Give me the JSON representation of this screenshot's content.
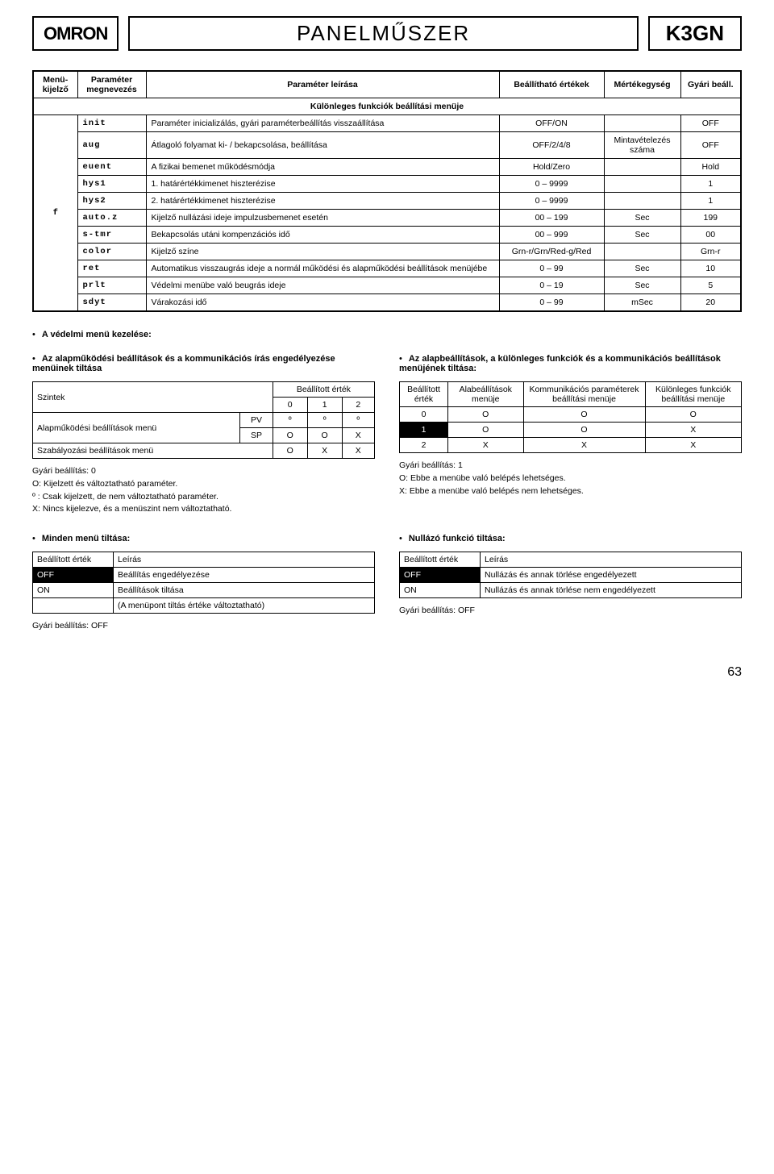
{
  "header": {
    "logo": "OMRON",
    "title": "PANELMŰSZER",
    "model": "K3GN"
  },
  "mainTable": {
    "head": [
      "Menü-kijelző",
      "Paraméter megnevezés",
      "Paraméter leírása",
      "Beállítható értékek",
      "Mértékegység",
      "Gyári beáll."
    ],
    "sectionTitle": "Különleges funkciók beállítási menüje",
    "menuGlyph": "f",
    "rows": [
      {
        "code": "init",
        "desc": "Paraméter inicializálás, gyári paraméterbeállítás visszaállítása",
        "val": "OFF/ON",
        "unit": "",
        "def": "OFF"
      },
      {
        "code": "aug",
        "desc": "Átlagoló folyamat ki- / bekapcsolása, beállítása",
        "val": "OFF/2/4/8",
        "unit": "Mintavételezés száma",
        "def": "OFF"
      },
      {
        "code": "euent",
        "desc": "A fizikai bemenet működésmódja",
        "val": "Hold/Zero",
        "unit": "",
        "def": "Hold"
      },
      {
        "code": "hys1",
        "desc": "1. határértékkimenet hiszterézise",
        "val": "0 – 9999",
        "unit": "",
        "def": "1"
      },
      {
        "code": "hys2",
        "desc": "2. határértékkimenet hiszterézise",
        "val": "0 – 9999",
        "unit": "",
        "def": "1"
      },
      {
        "code": "auto.z",
        "desc": "Kijelző nullázási ideje impulzusbemenet esetén",
        "val": "00 – 199",
        "unit": "Sec",
        "def": "199"
      },
      {
        "code": "s-tmr",
        "desc": "Bekapcsolás utáni kompenzációs idő",
        "val": "00 – 999",
        "unit": "Sec",
        "def": "00"
      },
      {
        "code": "color",
        "desc": "Kijelző színe",
        "val": "Grn-r/Grn/Red-g/Red",
        "unit": "",
        "def": "Grn-r"
      },
      {
        "code": "ret",
        "desc": "Automatikus visszaugrás ideje a normál működési és alapműködési beállítások menüjébe",
        "val": "0 – 99",
        "unit": "Sec",
        "def": "10"
      },
      {
        "code": "prlt",
        "desc": "Védelmi menübe való beugrás ideje",
        "val": "0 – 19",
        "unit": "Sec",
        "def": "5"
      },
      {
        "code": "sdyt",
        "desc": "Várakozási idő",
        "val": "0 – 99",
        "unit": "mSec",
        "def": "20"
      }
    ]
  },
  "sectionA": {
    "title": "A védelmi menü kezelése:"
  },
  "leftBlock": {
    "title": "Az alapműködési beállítások és a kommunikációs írás engedélyezése menüinek tiltása",
    "tbl": {
      "h1": "Szintek",
      "h2": "Beállított érték",
      "cols": [
        "0",
        "1",
        "2"
      ],
      "r1l": "Alapműködési beállítások menü",
      "r1a": "PV",
      "r1": [
        "º",
        "º",
        "º"
      ],
      "r2a": "SP",
      "r2": [
        "O",
        "O",
        "X"
      ],
      "r3l": "Szabályozási beállítások menü",
      "r3": [
        "O",
        "X",
        "X"
      ]
    },
    "notes": [
      "Gyári beállítás: 0",
      "O: Kijelzett és változtatható paraméter.",
      "º : Csak kijelzett, de nem változtatható paraméter.",
      "X: Nincs kijelezve, és a menüszint nem változtatható."
    ]
  },
  "rightBlock": {
    "title": "Az alapbeállítások, a különleges funkciók és a kommunikációs beállítások menüjének tiltása:",
    "tbl": {
      "head": [
        "Beállított érték",
        "Alabeállítások menüje",
        "Kommunikációs paraméterek beállítási menüje",
        "Különleges funkciók beállítási menüje"
      ],
      "rows": [
        {
          "v": "0",
          "a": "O",
          "b": "O",
          "c": "O",
          "inv": false
        },
        {
          "v": "1",
          "a": "O",
          "b": "O",
          "c": "X",
          "inv": true
        },
        {
          "v": "2",
          "a": "X",
          "b": "X",
          "c": "X",
          "inv": false
        }
      ]
    },
    "notes": [
      "Gyári beállítás: 1",
      "O: Ebbe a menübe való belépés lehetséges.",
      "X: Ebbe a menübe való belépés nem lehetséges."
    ]
  },
  "bottomLeft": {
    "title": "Minden menü tiltása:",
    "head": [
      "Beállított érték",
      "Leírás"
    ],
    "rows": [
      [
        "OFF",
        "Beállítás engedélyezése",
        true
      ],
      [
        "ON",
        "Beállítások tiltása",
        false
      ],
      [
        "",
        "(A menüpont tiltás értéke változtatható)",
        false
      ]
    ],
    "note": "Gyári beállítás: OFF"
  },
  "bottomRight": {
    "title": "Nullázó funkció tiltása:",
    "head": [
      "Beállított érték",
      "Leírás"
    ],
    "rows": [
      [
        "OFF",
        "Nullázás és annak törlése engedélyezett",
        true
      ],
      [
        "ON",
        "Nullázás és annak törlése nem engedélyezett",
        false
      ]
    ],
    "note": "Gyári beállítás: OFF"
  },
  "pageNum": "63"
}
